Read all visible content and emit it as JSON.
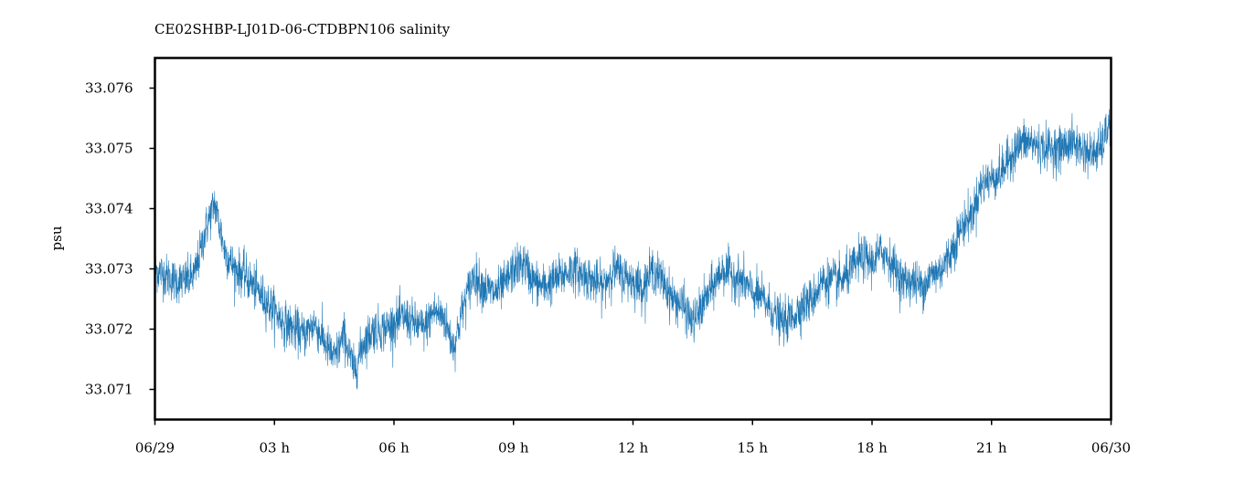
{
  "chart_data": {
    "type": "line",
    "title": "CE02SHBP-LJ01D-06-CTDBPN106 salinity",
    "ylabel": "psu",
    "xlabel": "",
    "x_start_hour": 0,
    "x_end_hour": 24,
    "xlim": [
      0,
      24
    ],
    "ylim": [
      33.0705,
      33.0765
    ],
    "x_ticks": [
      {
        "hour": 0,
        "label": "06/29"
      },
      {
        "hour": 3,
        "label": "03 h"
      },
      {
        "hour": 6,
        "label": "06 h"
      },
      {
        "hour": 9,
        "label": "09 h"
      },
      {
        "hour": 12,
        "label": "12 h"
      },
      {
        "hour": 15,
        "label": "15 h"
      },
      {
        "hour": 18,
        "label": "18 h"
      },
      {
        "hour": 21,
        "label": "21 h"
      },
      {
        "hour": 24,
        "label": "06/30"
      }
    ],
    "y_ticks": [
      {
        "value": 33.071,
        "label": "33.071"
      },
      {
        "value": 33.072,
        "label": "33.072"
      },
      {
        "value": 33.073,
        "label": "33.073"
      },
      {
        "value": 33.074,
        "label": "33.074"
      },
      {
        "value": 33.075,
        "label": "33.075"
      },
      {
        "value": 33.076,
        "label": "33.076"
      }
    ],
    "grid": false,
    "series_color": "#1f77b4",
    "series": [
      {
        "name": "",
        "hours": [
          0,
          0.25,
          0.5,
          0.75,
          1.0,
          1.25,
          1.5,
          1.75,
          2.0,
          2.25,
          2.5,
          2.75,
          3.0,
          3.25,
          3.5,
          3.75,
          4.0,
          4.25,
          4.5,
          4.75,
          5.0,
          5.25,
          5.5,
          5.75,
          6.0,
          6.25,
          6.5,
          6.75,
          7.0,
          7.25,
          7.5,
          7.75,
          8.0,
          8.25,
          8.5,
          8.75,
          9.0,
          9.25,
          9.5,
          9.75,
          10.0,
          10.25,
          10.5,
          10.75,
          11.0,
          11.25,
          11.5,
          11.75,
          12.0,
          12.25,
          12.5,
          12.75,
          13.0,
          13.25,
          13.5,
          13.75,
          14.0,
          14.25,
          14.5,
          14.75,
          15.0,
          15.25,
          15.5,
          15.75,
          16.0,
          16.25,
          16.5,
          16.75,
          17.0,
          17.25,
          17.5,
          17.75,
          18.0,
          18.25,
          18.5,
          18.75,
          19.0,
          19.25,
          19.5,
          19.75,
          20.0,
          20.25,
          20.5,
          20.75,
          21.0,
          21.25,
          21.5,
          21.75,
          22.0,
          22.25,
          22.5,
          22.75,
          23.0,
          23.25,
          23.5,
          23.75,
          24.0
        ],
        "values": [
          33.073,
          33.0729,
          33.0728,
          33.0728,
          33.0729,
          33.0736,
          33.0741,
          33.0733,
          33.073,
          33.0729,
          33.0727,
          33.0725,
          33.0723,
          33.0721,
          33.072,
          33.0719,
          33.0721,
          33.0718,
          33.0715,
          33.0719,
          33.0713,
          33.0718,
          33.072,
          33.072,
          33.0721,
          33.0722,
          33.0721,
          33.072,
          33.0723,
          33.0722,
          33.0717,
          33.0724,
          33.0729,
          33.0727,
          33.0726,
          33.0727,
          33.073,
          33.0731,
          33.0728,
          33.0727,
          33.0728,
          33.0729,
          33.073,
          33.0729,
          33.0728,
          33.0727,
          33.073,
          33.0729,
          33.0728,
          33.0727,
          33.073,
          33.0728,
          33.0725,
          33.0724,
          33.0721,
          33.0724,
          33.0727,
          33.073,
          33.0729,
          33.0728,
          33.0726,
          33.0725,
          33.0723,
          33.0721,
          33.0722,
          33.0724,
          33.0725,
          33.0728,
          33.0728,
          33.0728,
          33.073,
          33.0732,
          33.0731,
          33.0733,
          33.0731,
          33.0728,
          33.0728,
          33.0727,
          33.0729,
          33.073,
          33.0733,
          33.0737,
          33.0739,
          33.0744,
          33.0745,
          33.0746,
          33.0749,
          33.0751,
          33.0751,
          33.075,
          33.075,
          33.075,
          33.0751,
          33.075,
          33.0749,
          33.075,
          33.0755
        ]
      }
    ]
  }
}
